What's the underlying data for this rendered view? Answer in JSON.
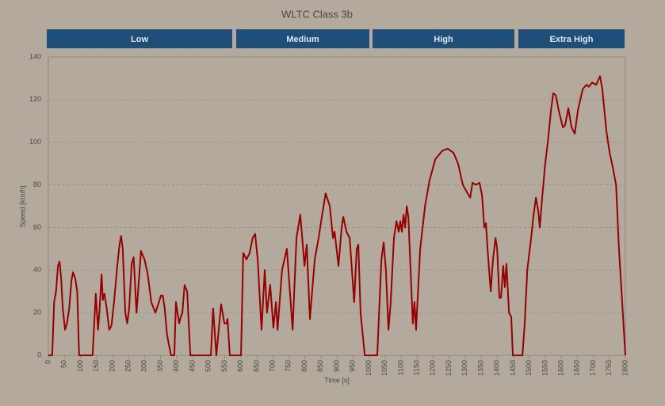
{
  "chart_data": {
    "type": "line",
    "title": "WLTC Class 3b",
    "xlabel": "Time [s]",
    "ylabel": "Speed [km/h]",
    "phases": [
      "Low",
      "Medium",
      "High",
      "Extra High"
    ],
    "series": [
      {
        "name": "Speed",
        "color": "#960000",
        "x": [
          0,
          12,
          18,
          24,
          30,
          35,
          40,
          45,
          52,
          58,
          65,
          72,
          77,
          84,
          90,
          96,
          138,
          148,
          155,
          160,
          166,
          170,
          175,
          182,
          190,
          197,
          205,
          215,
          222,
          227,
          232,
          240,
          246,
          252,
          260,
          266,
          270,
          275,
          280,
          289,
          294,
          300,
          310,
          321,
          334,
          345,
          351,
          357,
          363,
          370,
          376,
          383,
          393,
          398,
          403,
          408,
          413,
          418,
          425,
          433,
          443,
          507,
          514,
          524,
          539,
          549,
          555,
          559,
          566,
          601,
          608,
          618,
          628,
          637,
          645,
          653,
          665,
          675,
          682,
          692,
          702,
          710,
          715,
          729,
          744,
          762,
          774,
          786,
          799,
          806,
          816,
          831,
          843,
          851,
          865,
          878,
          888,
          893,
          905,
          915,
          920,
          930,
          940,
          954,
          962,
          967,
          974,
          987,
          1026,
          1039,
          1046,
          1053,
          1061,
          1068,
          1078,
          1086,
          1093,
          1098,
          1103,
          1108,
          1113,
          1118,
          1123,
          1130,
          1137,
          1142,
          1147,
          1160,
          1175,
          1189,
          1207,
          1229,
          1246,
          1264,
          1278,
          1293,
          1308,
          1316,
          1323,
          1333,
          1345,
          1353,
          1360,
          1365,
          1370,
          1380,
          1387,
          1395,
          1400,
          1407,
          1412,
          1419,
          1424,
          1429,
          1437,
          1444,
          1449,
          1479,
          1486,
          1494,
          1506,
          1513,
          1521,
          1528,
          1533,
          1541,
          1550,
          1558,
          1568,
          1575,
          1583,
          1592,
          1605,
          1612,
          1622,
          1632,
          1642,
          1652,
          1667,
          1679,
          1686,
          1696,
          1709,
          1721,
          1728,
          1741,
          1751,
          1761,
          1771,
          1780,
          1790,
          1800
        ],
        "values": [
          0,
          0,
          25,
          30,
          42,
          44,
          36,
          22,
          12,
          15,
          22,
          35,
          39,
          36,
          30,
          0,
          0,
          29,
          12,
          22,
          38,
          26,
          29,
          22,
          12,
          14,
          25,
          42,
          52,
          56,
          50,
          20,
          15,
          22,
          43,
          46,
          35,
          20,
          30,
          49,
          47,
          45,
          38,
          25,
          20,
          25,
          28,
          28,
          22,
          10,
          5,
          0,
          0,
          25,
          20,
          15,
          18,
          20,
          33,
          30,
          0,
          0,
          22,
          0,
          24,
          15,
          15,
          17,
          0,
          0,
          48,
          45,
          48,
          55,
          57,
          45,
          12,
          40,
          20,
          33,
          13,
          25,
          12,
          40,
          50,
          12,
          55,
          66,
          42,
          52,
          17,
          45,
          55,
          63,
          76,
          70,
          55,
          58,
          42,
          60,
          65,
          58,
          55,
          25,
          50,
          52,
          20,
          0,
          0,
          45,
          53,
          40,
          12,
          25,
          55,
          63,
          58,
          63,
          58,
          66,
          60,
          70,
          65,
          40,
          15,
          25,
          12,
          50,
          70,
          82,
          92,
          96,
          97,
          95,
          90,
          80,
          76,
          74,
          81,
          80,
          81,
          75,
          60,
          62,
          50,
          30,
          45,
          55,
          50,
          27,
          27,
          42,
          32,
          43,
          20,
          18,
          0,
          0,
          15,
          40,
          55,
          65,
          74,
          68,
          60,
          75,
          90,
          100,
          115,
          123,
          122,
          115,
          107,
          108,
          116,
          107,
          104,
          115,
          125,
          127,
          126,
          128,
          127,
          131,
          125,
          105,
          95,
          88,
          80,
          50,
          25,
          0
        ]
      }
    ],
    "xlim": [
      0,
      1800
    ],
    "xticks": [
      0,
      50,
      100,
      150,
      200,
      250,
      300,
      350,
      400,
      450,
      500,
      550,
      600,
      650,
      700,
      750,
      800,
      850,
      900,
      950,
      1000,
      1050,
      1100,
      1150,
      1200,
      1250,
      1300,
      1350,
      1400,
      1450,
      1500,
      1550,
      1600,
      1650,
      1700,
      1750,
      1800
    ],
    "ylim": [
      0,
      140
    ],
    "yticks": [
      0,
      20,
      40,
      60,
      80,
      100,
      120,
      140
    ],
    "grid": true
  }
}
